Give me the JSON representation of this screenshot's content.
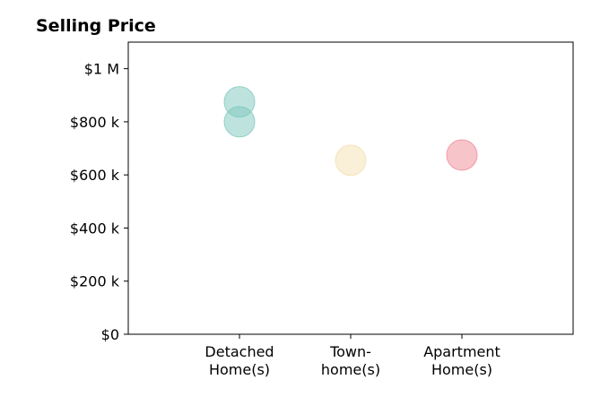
{
  "chart_data": {
    "type": "scatter",
    "title": "Selling Price",
    "xlabel": "",
    "ylabel": "",
    "categories": [
      [
        "Detached",
        "Home(s)"
      ],
      [
        "Town-",
        "home(s)"
      ],
      [
        "Apartment",
        "Home(s)"
      ]
    ],
    "ylim": [
      0,
      1100000
    ],
    "yticks": [
      {
        "value": 0,
        "label": "$0"
      },
      {
        "value": 200000,
        "label": "$200 k"
      },
      {
        "value": 400000,
        "label": "$400 k"
      },
      {
        "value": 600000,
        "label": "$600 k"
      },
      {
        "value": 800000,
        "label": "$800 k"
      },
      {
        "value": 1000000,
        "label": "$1 M"
      }
    ],
    "grid": false,
    "legend": "none",
    "points": [
      {
        "category": 0,
        "value": 875000,
        "color": "#7ec8bd"
      },
      {
        "category": 0,
        "value": 800000,
        "color": "#7ec8bd"
      },
      {
        "category": 1,
        "value": 655000,
        "color": "#f5dfb0"
      },
      {
        "category": 2,
        "value": 675000,
        "color": "#f08a96"
      }
    ]
  }
}
